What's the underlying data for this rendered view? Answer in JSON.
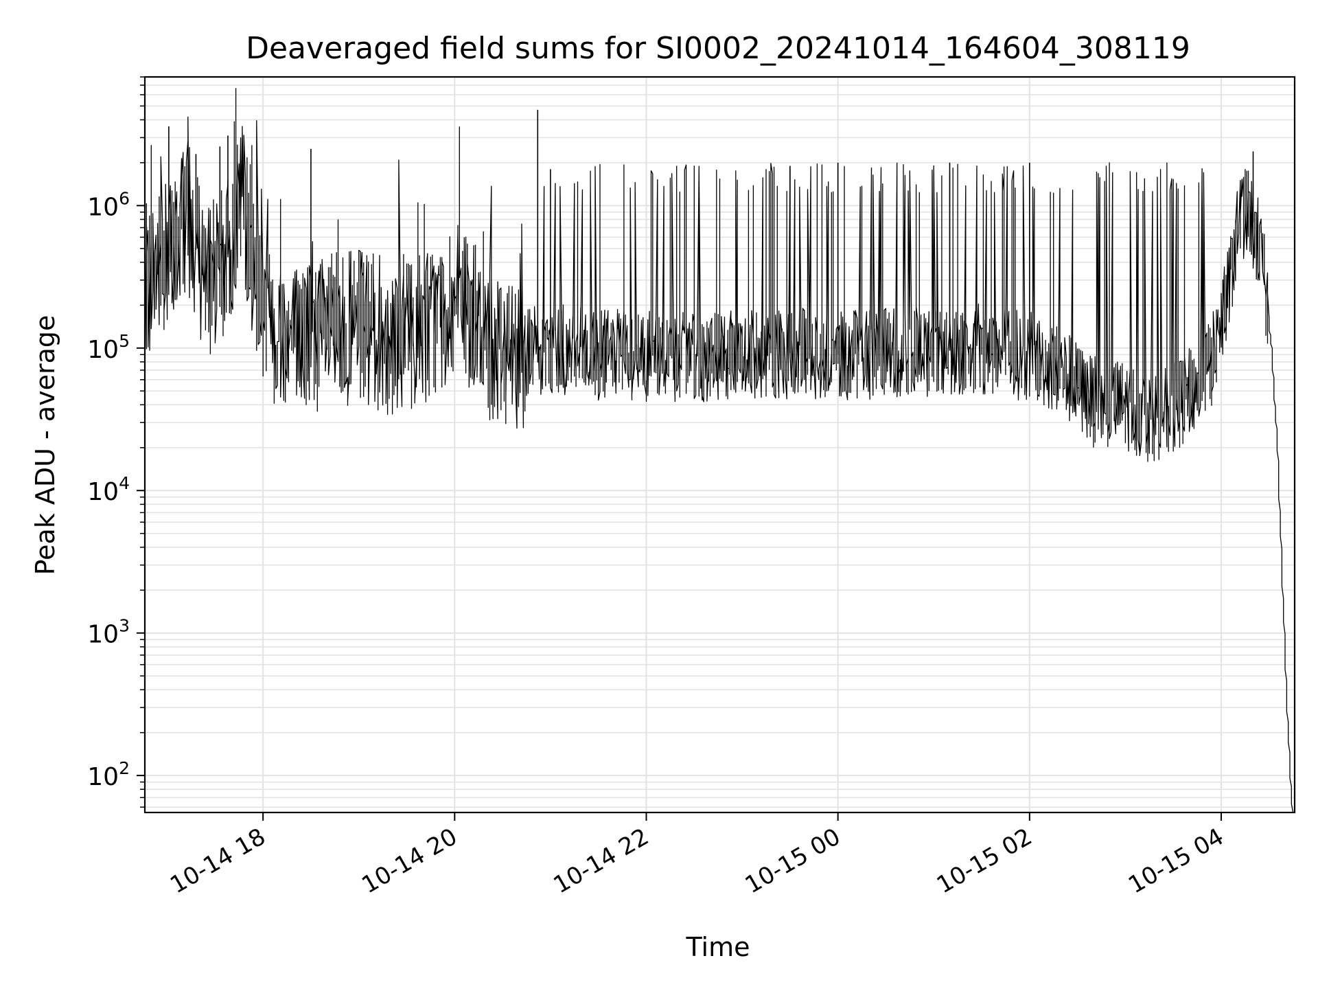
{
  "chart_data": {
    "type": "line",
    "title": "Deaveraged field sums for SI0002_20241014_164604_308119",
    "xlabel": "Time",
    "ylabel": "Peak ADU - average",
    "y_scale": "log",
    "grid": true,
    "x_range": [
      "2024-10-14 16:46",
      "2024-10-15 04:46"
    ],
    "y_range": [
      55,
      8000000
    ],
    "x_ticks": [
      {
        "value": "2024-10-14 18:00",
        "label": "10-14 18"
      },
      {
        "value": "2024-10-14 20:00",
        "label": "10-14 20"
      },
      {
        "value": "2024-10-14 22:00",
        "label": "10-14 22"
      },
      {
        "value": "2024-10-15 00:00",
        "label": "10-15 00"
      },
      {
        "value": "2024-10-15 02:00",
        "label": "10-15 02"
      },
      {
        "value": "2024-10-15 04:00",
        "label": "10-15 04"
      }
    ],
    "y_ticks": [
      {
        "value": 100,
        "base": "10",
        "exp": "2"
      },
      {
        "value": 1000,
        "base": "10",
        "exp": "3"
      },
      {
        "value": 10000,
        "base": "10",
        "exp": "4"
      },
      {
        "value": 100000,
        "base": "10",
        "exp": "5"
      },
      {
        "value": 1000000,
        "base": "10",
        "exp": "6"
      }
    ],
    "line_color": "#000000",
    "grid_color": "#e3e3e3",
    "series": [
      {
        "x": [
          "2024-10-14 16:46",
          "2024-10-14 16:55",
          "2024-10-14 17:05",
          "2024-10-14 17:10",
          "2024-10-14 17:14",
          "2024-10-14 17:18",
          "2024-10-14 17:24",
          "2024-10-14 17:30",
          "2024-10-14 17:36",
          "2024-10-14 17:42",
          "2024-10-14 17:48",
          "2024-10-14 17:55",
          "2024-10-14 18:05",
          "2024-10-14 18:20",
          "2024-10-14 18:40",
          "2024-10-14 19:00",
          "2024-10-14 19:20",
          "2024-10-14 19:40",
          "2024-10-14 19:55",
          "2024-10-14 20:05",
          "2024-10-14 20:20",
          "2024-10-14 20:40",
          "2024-10-14 21:00",
          "2024-10-14 21:30",
          "2024-10-14 22:00",
          "2024-10-14 22:30",
          "2024-10-14 23:00",
          "2024-10-14 23:30",
          "2024-10-15 00:00",
          "2024-10-15 00:30",
          "2024-10-15 01:00",
          "2024-10-15 01:30",
          "2024-10-15 02:00",
          "2024-10-15 02:20",
          "2024-10-15 02:40",
          "2024-10-15 03:00",
          "2024-10-15 03:15",
          "2024-10-15 03:30",
          "2024-10-15 03:45",
          "2024-10-15 03:55",
          "2024-10-15 04:05",
          "2024-10-15 04:12",
          "2024-10-15 04:18",
          "2024-10-15 04:22",
          "2024-10-15 04:27",
          "2024-10-15 04:32",
          "2024-10-15 04:36",
          "2024-10-15 04:39",
          "2024-10-15 04:41",
          "2024-10-15 04:43",
          "2024-10-15 04:45"
        ],
        "values": [
          280000,
          380000,
          480000,
          860000,
          820000,
          500000,
          350000,
          280000,
          400000,
          600000,
          1300000,
          350000,
          150000,
          120000,
          130000,
          140000,
          120000,
          140000,
          180000,
          220000,
          110000,
          95000,
          100000,
          90000,
          88000,
          85000,
          88000,
          92000,
          90000,
          92000,
          95000,
          98000,
          88000,
          70000,
          42000,
          40000,
          33000,
          36000,
          55000,
          80000,
          250000,
          850000,
          900000,
          650000,
          350000,
          100000,
          18000,
          2000,
          500,
          150,
          55
        ]
      }
    ],
    "spikes": [
      {
        "x": "2024-10-14 17:01",
        "y": 3600000
      },
      {
        "x": "2024-10-14 17:18",
        "y": 2300000
      },
      {
        "x": "2024-10-14 17:33",
        "y": 2600000
      },
      {
        "x": "2024-10-14 17:38",
        "y": 3100000
      },
      {
        "x": "2024-10-14 18:30",
        "y": 2500000
      },
      {
        "x": "2024-10-14 20:52",
        "y": 4700000
      },
      {
        "x": "2024-10-14 21:00",
        "y": 1800000
      },
      {
        "x": "2024-10-14 23:30",
        "y": 1900000
      },
      {
        "x": "2024-10-15 00:00",
        "y": 2000000
      },
      {
        "x": "2024-10-15 01:10",
        "y": 2000000
      },
      {
        "x": "2024-10-15 02:00",
        "y": 2000000
      },
      {
        "x": "2024-10-15 04:20",
        "y": 2400000
      }
    ]
  }
}
